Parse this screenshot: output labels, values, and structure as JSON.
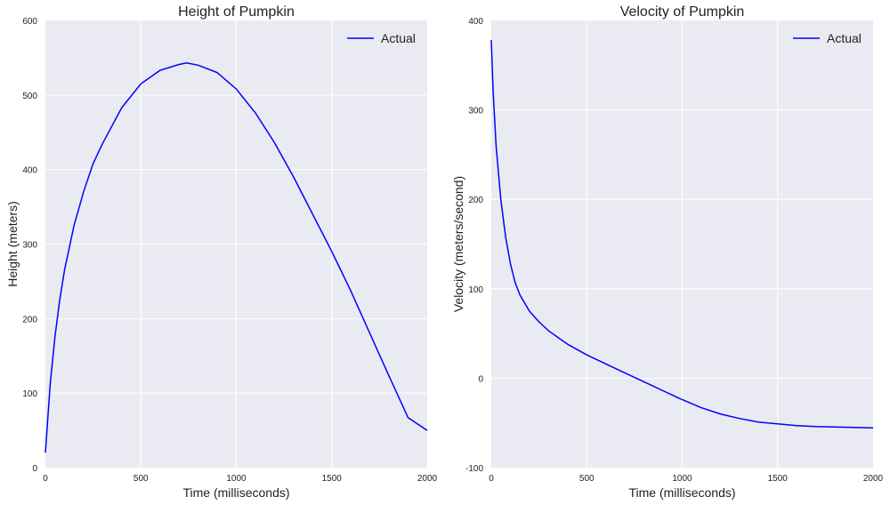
{
  "chart_data": [
    {
      "type": "line",
      "title": "Height of Pumpkin",
      "xlabel": "Time (milliseconds)",
      "ylabel": "Height (meters)",
      "xlim": [
        0,
        2000
      ],
      "ylim": [
        0,
        600
      ],
      "xticks": [
        0,
        500,
        1000,
        1500,
        2000
      ],
      "yticks": [
        0,
        100,
        200,
        300,
        400,
        500,
        600
      ],
      "grid": true,
      "legend": "top-right",
      "series": [
        {
          "name": "Actual",
          "color": "#0000ff",
          "x": [
            0,
            25,
            50,
            75,
            100,
            150,
            200,
            250,
            300,
            400,
            500,
            600,
            700,
            740,
            800,
            900,
            1000,
            1100,
            1200,
            1300,
            1400,
            1500,
            1600,
            1700,
            1800,
            1900,
            2000
          ],
          "y": [
            20,
            112,
            175,
            225,
            265,
            325,
            370,
            408,
            435,
            483,
            515,
            533,
            541,
            543,
            540,
            530,
            508,
            476,
            436,
            390,
            340,
            290,
            237,
            180,
            123,
            67,
            50
          ]
        }
      ]
    },
    {
      "type": "line",
      "title": "Velocity of Pumpkin",
      "xlabel": "Time (milliseconds)",
      "ylabel": "Velocity (meters/second)",
      "xlim": [
        0,
        2000
      ],
      "ylim": [
        -100,
        400
      ],
      "xticks": [
        0,
        500,
        1000,
        1500,
        2000
      ],
      "yticks": [
        -100,
        0,
        100,
        200,
        300,
        400
      ],
      "grid": true,
      "legend": "top-right",
      "series": [
        {
          "name": "Actual",
          "color": "#0000ff",
          "x": [
            0,
            10,
            25,
            50,
            75,
            100,
            125,
            150,
            200,
            250,
            300,
            400,
            500,
            600,
            700,
            800,
            900,
            1000,
            1100,
            1200,
            1300,
            1400,
            1500,
            1600,
            1700,
            1800,
            1900,
            2000
          ],
          "y": [
            378,
            320,
            260,
            200,
            158,
            128,
            107,
            93,
            75,
            63,
            53,
            38,
            26,
            16,
            6,
            -4,
            -14,
            -24,
            -33,
            -40,
            -45,
            -49,
            -51,
            -53,
            -54,
            -54.5,
            -55,
            -55.5
          ]
        }
      ]
    }
  ]
}
